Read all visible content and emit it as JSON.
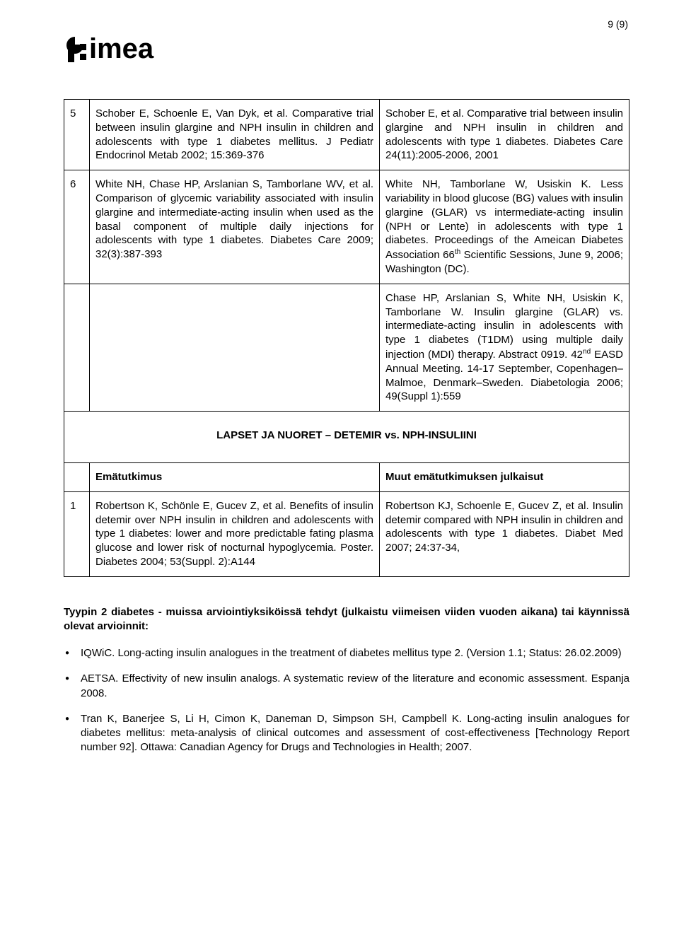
{
  "page_number_label": "9 (9)",
  "logo_text": "fimea",
  "colors": {
    "text": "#000000",
    "background": "#ffffff",
    "border": "#000000"
  },
  "table1": {
    "rows": [
      {
        "num": "5",
        "left": "Schober E, Schoenle E, Van Dyk, et al. Comparative trial between insulin glargine and NPH insulin in children and adolescents with type 1 diabetes mellitus. J Pediatr Endocrinol Metab 2002; 15:369-376",
        "right": "Schober E, et al. Comparative trial between insulin glargine and NPH insulin in children and adolescents with type 1 diabetes. Diabetes Care 24(11):2005-2006, 2001"
      },
      {
        "num": "6",
        "left": "White NH, Chase HP, Arslanian S, Tamborlane WV, et al. Comparison of glycemic variability associated with insulin glargine and intermediate-acting insulin when used as the basal component of multiple daily injections for adolescents with type 1 diabetes. Diabetes Care 2009; 32(3):387-393",
        "right_html": "White NH, Tamborlane W, Usiskin K. Less variability in blood glucose (BG) values with insulin glargine (GLAR) vs intermediate-acting insulin (NPH or Lente) in adolescents with type 1 diabetes. Proceedings of the Ameican Diabetes Association 66<sup>th</sup> Scientific Sessions, June 9, 2006; Washington (DC)."
      },
      {
        "num": "",
        "left": "",
        "right_html": "Chase HP, Arslanian S, White NH, Usiskin K, Tamborlane W. Insulin glargine (GLAR) vs. intermediate-acting insulin in adolescents with type 1 diabetes (T1DM) using multiple daily injection (MDI) therapy. Abstract 0919. 42<sup>nd</sup> EASD Annual Meeting. 14-17 September, Copenhagen–Malmoe, Denmark–Sweden. Diabetologia 2006; 49(Suppl 1):559"
      }
    ]
  },
  "section2_title": "LAPSET JA NUORET – DETEMIR vs. NPH-INSULIINI",
  "table2": {
    "header": {
      "left": "Emätutkimus",
      "right": "Muut emätutkimuksen julkaisut"
    },
    "rows": [
      {
        "num": "1",
        "left": "Robertson K, Schönle E, Gucev Z, et al. Benefits of insulin detemir over NPH insulin in children and adolescents with type 1 diabetes: lower and more predictable fating plasma glucose and lower risk of nocturnal hypoglycemia. Poster. Diabetes 2004; 53(Suppl. 2):A144",
        "right": "Robertson KJ, Schoenle E, Gucev Z, et al. Insulin detemir compared with NPH insulin in children and adolescents with type 1 diabetes. Diabet Med 2007; 24:37-34,"
      }
    ]
  },
  "footer_heading": "Tyypin 2 diabetes - muissa arviointiyksiköissä tehdyt (julkaistu viimeisen viiden vuoden aikana) tai käynnissä olevat arvioinnit:",
  "bullets": [
    "IQWiC. Long-acting insulin analogues in the treatment of diabetes mellitus type 2. (Version 1.1; Status: 26.02.2009)",
    "AETSA. Effectivity of new insulin analogs. A systematic review of the literature and economic assessment. Espanja 2008.",
    "Tran K, Banerjee S, Li H, Cimon K, Daneman D, Simpson SH, Campbell K. Long-acting insulin analogues for diabetes mellitus: meta-analysis of clinical outcomes and assessment of cost-effectiveness [Technology Report number 92]. Ottawa: Canadian Agency for Drugs and Technologies in Health; 2007."
  ]
}
